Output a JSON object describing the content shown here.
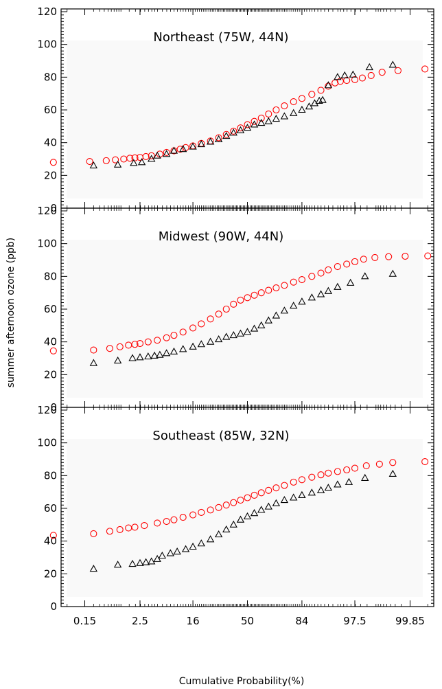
{
  "chart_data": {
    "type": "scatter",
    "xlabel": "Cumulative Probability(%)",
    "ylabel": "summer afternoon ozone (ppb)",
    "x_scale": "probability",
    "x_ticks": [
      "0.15",
      "2.5",
      "16",
      "50",
      "84",
      "97.5",
      "99.85"
    ],
    "x_tick_values": [
      0.15,
      2.5,
      16,
      50,
      84,
      97.5,
      99.85
    ],
    "y_ticks": [
      "0",
      "20",
      "40",
      "60",
      "80",
      "100",
      "120"
    ],
    "ylim": [
      0,
      120
    ],
    "colors": {
      "red_series": "#ff0000",
      "black_series": "#000000"
    },
    "panels": [
      {
        "title": "Northeast (75W, 44N)",
        "series": [
          {
            "marker": "circle",
            "color": "#ff0000",
            "points": [
              [
                0.02,
                28
              ],
              [
                0.2,
                28.5
              ],
              [
                0.5,
                29
              ],
              [
                0.8,
                29.5
              ],
              [
                1.2,
                30
              ],
              [
                1.6,
                30.5
              ],
              [
                2,
                30.7
              ],
              [
                2.5,
                31
              ],
              [
                3.2,
                31.5
              ],
              [
                4,
                32
              ],
              [
                5.5,
                33
              ],
              [
                7,
                34
              ],
              [
                9,
                35
              ],
              [
                11,
                36
              ],
              [
                13,
                37
              ],
              [
                16,
                38
              ],
              [
                20,
                39.5
              ],
              [
                25,
                41
              ],
              [
                30,
                43
              ],
              [
                35,
                45
              ],
              [
                40,
                47
              ],
              [
                45,
                49
              ],
              [
                50,
                51
              ],
              [
                55,
                53
              ],
              [
                60,
                55
              ],
              [
                65,
                57.5
              ],
              [
                70,
                60
              ],
              [
                75,
                62.5
              ],
              [
                80,
                65
              ],
              [
                84,
                67
              ],
              [
                88,
                69.5
              ],
              [
                91,
                72
              ],
              [
                93,
                74.5
              ],
              [
                94.5,
                76.5
              ],
              [
                95.5,
                77.5
              ],
              [
                96.5,
                78
              ],
              [
                97.5,
                78.5
              ],
              [
                98.2,
                79.5
              ],
              [
                98.8,
                81
              ],
              [
                99.3,
                83
              ],
              [
                99.7,
                84
              ],
              [
                99.94,
                85
              ]
            ]
          },
          {
            "marker": "triangle",
            "color": "#000000",
            "points": [
              [
                0.25,
                26
              ],
              [
                0.9,
                26.5
              ],
              [
                1.9,
                27.5
              ],
              [
                2.7,
                28
              ],
              [
                4,
                30
              ],
              [
                5,
                32
              ],
              [
                7,
                33
              ],
              [
                9,
                35
              ],
              [
                12,
                36
              ],
              [
                16,
                37.5
              ],
              [
                20,
                39
              ],
              [
                25,
                40.5
              ],
              [
                30,
                42
              ],
              [
                35,
                44
              ],
              [
                40,
                46
              ],
              [
                45,
                47.5
              ],
              [
                50,
                49
              ],
              [
                55,
                51
              ],
              [
                60,
                52
              ],
              [
                65,
                53
              ],
              [
                70,
                54.5
              ],
              [
                75,
                56
              ],
              [
                80,
                58
              ],
              [
                84,
                60
              ],
              [
                87,
                62
              ],
              [
                89,
                64
              ],
              [
                90.5,
                65.5
              ],
              [
                91.5,
                66
              ],
              [
                93,
                75
              ],
              [
                95,
                80
              ],
              [
                96.2,
                81
              ],
              [
                97.3,
                81.5
              ],
              [
                98.7,
                86
              ],
              [
                99.6,
                87.5
              ]
            ]
          }
        ]
      },
      {
        "title": "Midwest (90W, 44N)",
        "series": [
          {
            "marker": "circle",
            "color": "#ff0000",
            "points": [
              [
                0.02,
                34.5
              ],
              [
                0.25,
                35
              ],
              [
                0.6,
                36
              ],
              [
                1,
                37
              ],
              [
                1.5,
                38
              ],
              [
                2,
                38.5
              ],
              [
                2.5,
                39
              ],
              [
                3.5,
                40
              ],
              [
                5,
                41
              ],
              [
                7,
                42.5
              ],
              [
                9,
                44
              ],
              [
                12,
                46
              ],
              [
                16,
                48.5
              ],
              [
                20,
                51
              ],
              [
                25,
                54
              ],
              [
                30,
                57
              ],
              [
                35,
                60
              ],
              [
                40,
                63
              ],
              [
                45,
                65.5
              ],
              [
                50,
                67
              ],
              [
                55,
                68.5
              ],
              [
                60,
                70
              ],
              [
                65,
                71.5
              ],
              [
                70,
                73
              ],
              [
                75,
                74.5
              ],
              [
                80,
                76.5
              ],
              [
                84,
                78
              ],
              [
                88,
                80
              ],
              [
                91,
                82
              ],
              [
                93,
                84
              ],
              [
                95,
                86
              ],
              [
                96.5,
                87.5
              ],
              [
                97.5,
                89
              ],
              [
                98.3,
                90.5
              ],
              [
                99,
                91.5
              ],
              [
                99.5,
                92
              ],
              [
                99.8,
                92.3
              ],
              [
                99.95,
                92.5
              ]
            ]
          },
          {
            "marker": "triangle",
            "color": "#000000",
            "points": [
              [
                0.25,
                27
              ],
              [
                0.9,
                28.5
              ],
              [
                1.8,
                30
              ],
              [
                2.5,
                30.5
              ],
              [
                3.5,
                31
              ],
              [
                4.5,
                31.5
              ],
              [
                5.5,
                32
              ],
              [
                7,
                33
              ],
              [
                9,
                34
              ],
              [
                12,
                35.5
              ],
              [
                16,
                37
              ],
              [
                20,
                38.5
              ],
              [
                25,
                40
              ],
              [
                30,
                41.5
              ],
              [
                35,
                43
              ],
              [
                40,
                44
              ],
              [
                45,
                45
              ],
              [
                50,
                46
              ],
              [
                55,
                48
              ],
              [
                60,
                50
              ],
              [
                65,
                53
              ],
              [
                70,
                56
              ],
              [
                75,
                59
              ],
              [
                80,
                62
              ],
              [
                84,
                64.5
              ],
              [
                88,
                67
              ],
              [
                91,
                69
              ],
              [
                93,
                71
              ],
              [
                95,
                73.5
              ],
              [
                97,
                76
              ],
              [
                98.4,
                80
              ],
              [
                99.6,
                81.5
              ]
            ]
          }
        ]
      },
      {
        "title": "Southeast (85W, 32N)",
        "series": [
          {
            "marker": "circle",
            "color": "#ff0000",
            "points": [
              [
                0.02,
                43.5
              ],
              [
                0.25,
                44.5
              ],
              [
                0.6,
                46
              ],
              [
                1,
                47
              ],
              [
                1.5,
                48
              ],
              [
                2,
                48.5
              ],
              [
                3,
                49.5
              ],
              [
                5,
                51
              ],
              [
                7,
                52
              ],
              [
                9,
                53
              ],
              [
                12,
                54.5
              ],
              [
                16,
                56
              ],
              [
                20,
                57.5
              ],
              [
                25,
                59
              ],
              [
                30,
                60.5
              ],
              [
                35,
                62
              ],
              [
                40,
                63.5
              ],
              [
                45,
                65
              ],
              [
                50,
                66.5
              ],
              [
                55,
                68
              ],
              [
                60,
                69.5
              ],
              [
                65,
                71
              ],
              [
                70,
                72.5
              ],
              [
                75,
                74
              ],
              [
                80,
                76
              ],
              [
                84,
                77.5
              ],
              [
                88,
                79
              ],
              [
                91,
                80.5
              ],
              [
                93,
                81.5
              ],
              [
                95,
                82.5
              ],
              [
                96.5,
                83.5
              ],
              [
                97.5,
                84.5
              ],
              [
                98.5,
                86
              ],
              [
                99.2,
                87
              ],
              [
                99.6,
                88
              ],
              [
                99.94,
                88.5
              ]
            ]
          },
          {
            "marker": "triangle",
            "color": "#000000",
            "points": [
              [
                0.25,
                23
              ],
              [
                0.9,
                25.5
              ],
              [
                1.8,
                26
              ],
              [
                2.5,
                26.5
              ],
              [
                3.2,
                27
              ],
              [
                4,
                27.5
              ],
              [
                5,
                29
              ],
              [
                6,
                31
              ],
              [
                8,
                32.5
              ],
              [
                10,
                33.5
              ],
              [
                13,
                35
              ],
              [
                16,
                36.5
              ],
              [
                20,
                38.5
              ],
              [
                25,
                41
              ],
              [
                30,
                44
              ],
              [
                35,
                47
              ],
              [
                40,
                50
              ],
              [
                45,
                53
              ],
              [
                50,
                55
              ],
              [
                55,
                57
              ],
              [
                60,
                59
              ],
              [
                65,
                61
              ],
              [
                70,
                63
              ],
              [
                75,
                65
              ],
              [
                80,
                66.5
              ],
              [
                84,
                68
              ],
              [
                88,
                69.5
              ],
              [
                91,
                71
              ],
              [
                93,
                72.5
              ],
              [
                95,
                74.5
              ],
              [
                96.8,
                76
              ],
              [
                98.4,
                78.5
              ],
              [
                99.6,
                81
              ]
            ]
          }
        ]
      }
    ]
  }
}
